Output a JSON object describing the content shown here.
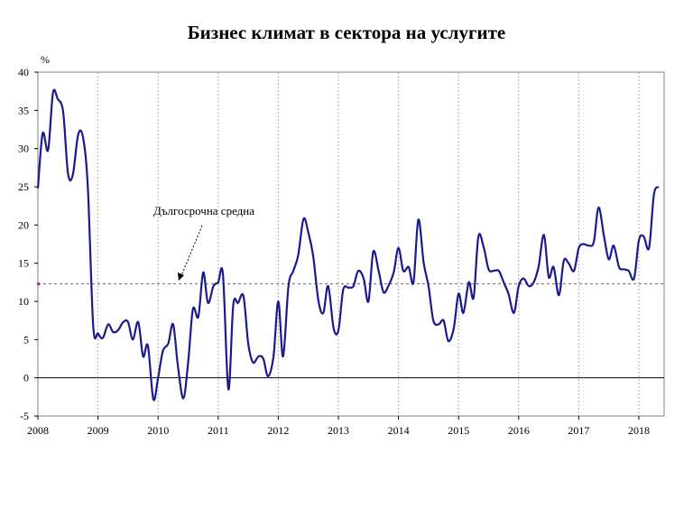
{
  "chart_data": {
    "type": "line",
    "title": "Бизнес климат в сектора на услугите",
    "ylabel": "%",
    "ylim": [
      -5,
      40
    ],
    "yticks": [
      -5,
      0,
      5,
      10,
      15,
      20,
      25,
      30,
      35,
      40
    ],
    "xlim": [
      2008,
      2018.42
    ],
    "xticks": [
      2008,
      2009,
      2010,
      2011,
      2012,
      2013,
      2014,
      2015,
      2016,
      2017,
      2018
    ],
    "xtick_labels": [
      "2008",
      "2009",
      "2010",
      "2011",
      "2012",
      "2013",
      "2014",
      "2015",
      "2016",
      "2017",
      "2018"
    ],
    "grid": "vertical dotted at years",
    "colors": {
      "line": "#1a1a8c",
      "reference": "#808080",
      "marker": "#cc00cc",
      "zero": "#000000"
    },
    "reference_line": {
      "value": 12.3,
      "label": "Дългосрочна средна"
    },
    "series": [
      {
        "values": [
          [
            2008.0,
            24.8
          ],
          [
            2008.08,
            32.0
          ],
          [
            2008.17,
            29.8
          ],
          [
            2008.25,
            37.3
          ],
          [
            2008.33,
            36.5
          ],
          [
            2008.42,
            34.8
          ],
          [
            2008.5,
            26.8
          ],
          [
            2008.58,
            26.5
          ],
          [
            2008.67,
            31.8
          ],
          [
            2008.75,
            31.5
          ],
          [
            2008.83,
            25.0
          ],
          [
            2008.92,
            6.8
          ],
          [
            2009.0,
            5.8
          ],
          [
            2009.08,
            5.2
          ],
          [
            2009.17,
            7.0
          ],
          [
            2009.25,
            6.0
          ],
          [
            2009.33,
            6.2
          ],
          [
            2009.42,
            7.3
          ],
          [
            2009.5,
            7.3
          ],
          [
            2009.58,
            5.0
          ],
          [
            2009.67,
            7.3
          ],
          [
            2009.75,
            2.8
          ],
          [
            2009.83,
            4.2
          ],
          [
            2009.92,
            -2.8
          ],
          [
            2010.0,
            0.0
          ],
          [
            2010.08,
            3.5
          ],
          [
            2010.17,
            4.5
          ],
          [
            2010.25,
            7.0
          ],
          [
            2010.33,
            1.5
          ],
          [
            2010.42,
            -2.7
          ],
          [
            2010.5,
            2.0
          ],
          [
            2010.58,
            9.0
          ],
          [
            2010.67,
            8.0
          ],
          [
            2010.75,
            13.8
          ],
          [
            2010.83,
            9.8
          ],
          [
            2010.92,
            12.0
          ],
          [
            2011.0,
            12.5
          ],
          [
            2011.08,
            13.5
          ],
          [
            2011.17,
            -1.5
          ],
          [
            2011.25,
            9.5
          ],
          [
            2011.33,
            9.8
          ],
          [
            2011.42,
            10.7
          ],
          [
            2011.5,
            4.5
          ],
          [
            2011.58,
            2.0
          ],
          [
            2011.67,
            2.8
          ],
          [
            2011.75,
            2.5
          ],
          [
            2011.83,
            0.2
          ],
          [
            2011.92,
            2.8
          ],
          [
            2012.0,
            10.0
          ],
          [
            2012.08,
            2.8
          ],
          [
            2012.17,
            12.0
          ],
          [
            2012.25,
            14.0
          ],
          [
            2012.33,
            16.0
          ],
          [
            2012.42,
            20.8
          ],
          [
            2012.5,
            19.0
          ],
          [
            2012.58,
            16.0
          ],
          [
            2012.67,
            10.0
          ],
          [
            2012.75,
            8.5
          ],
          [
            2012.83,
            12.0
          ],
          [
            2012.92,
            6.5
          ],
          [
            2013.0,
            6.2
          ],
          [
            2013.08,
            11.5
          ],
          [
            2013.17,
            11.8
          ],
          [
            2013.25,
            12.0
          ],
          [
            2013.33,
            14.0
          ],
          [
            2013.42,
            13.0
          ],
          [
            2013.5,
            10.0
          ],
          [
            2013.58,
            16.5
          ],
          [
            2013.67,
            14.0
          ],
          [
            2013.75,
            11.2
          ],
          [
            2013.83,
            12.0
          ],
          [
            2013.92,
            13.8
          ],
          [
            2014.0,
            17.0
          ],
          [
            2014.08,
            14.0
          ],
          [
            2014.17,
            14.5
          ],
          [
            2014.25,
            12.5
          ],
          [
            2014.33,
            20.7
          ],
          [
            2014.42,
            15.0
          ],
          [
            2014.5,
            12.0
          ],
          [
            2014.58,
            7.5
          ],
          [
            2014.67,
            7.0
          ],
          [
            2014.75,
            7.5
          ],
          [
            2014.83,
            4.8
          ],
          [
            2014.92,
            6.5
          ],
          [
            2015.0,
            11.0
          ],
          [
            2015.08,
            8.5
          ],
          [
            2015.17,
            12.5
          ],
          [
            2015.25,
            10.5
          ],
          [
            2015.33,
            18.5
          ],
          [
            2015.42,
            17.0
          ],
          [
            2015.5,
            14.2
          ],
          [
            2015.58,
            14.0
          ],
          [
            2015.67,
            14.0
          ],
          [
            2015.75,
            12.5
          ],
          [
            2015.83,
            11.0
          ],
          [
            2015.92,
            8.5
          ],
          [
            2016.0,
            12.0
          ],
          [
            2016.08,
            13.0
          ],
          [
            2016.17,
            12.0
          ],
          [
            2016.25,
            12.5
          ],
          [
            2016.33,
            14.5
          ],
          [
            2016.42,
            18.7
          ],
          [
            2016.5,
            13.2
          ],
          [
            2016.58,
            14.5
          ],
          [
            2016.67,
            10.8
          ],
          [
            2016.75,
            15.3
          ],
          [
            2016.83,
            15.0
          ],
          [
            2016.92,
            14.0
          ],
          [
            2017.0,
            17.0
          ],
          [
            2017.08,
            17.5
          ],
          [
            2017.17,
            17.3
          ],
          [
            2017.25,
            17.8
          ],
          [
            2017.33,
            22.3
          ],
          [
            2017.42,
            18.5
          ],
          [
            2017.5,
            15.5
          ],
          [
            2017.58,
            17.3
          ],
          [
            2017.67,
            14.5
          ],
          [
            2017.75,
            14.2
          ],
          [
            2017.83,
            14.0
          ],
          [
            2017.92,
            13.0
          ],
          [
            2018.0,
            18.0
          ],
          [
            2018.08,
            18.5
          ],
          [
            2018.17,
            17.0
          ],
          [
            2018.25,
            24.0
          ],
          [
            2018.33,
            25.0
          ]
        ]
      }
    ]
  }
}
